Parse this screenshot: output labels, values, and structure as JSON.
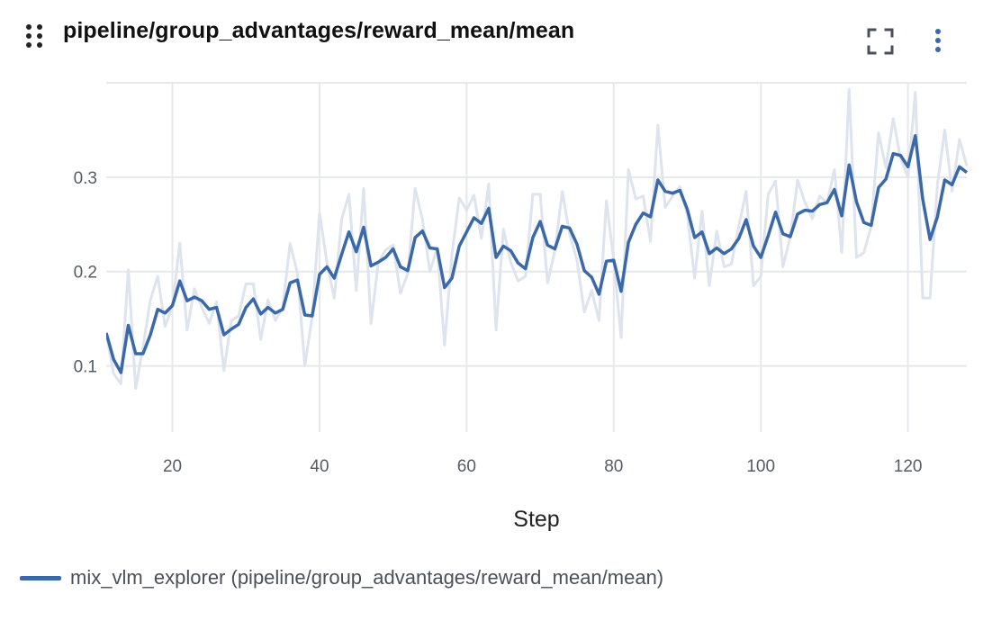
{
  "header": {
    "title": "pipeline/group_advantages/reward_mean/mean",
    "icons": {
      "drag": "drag-handle-icon",
      "fullscreen": "fullscreen-icon",
      "menu": "more-vertical-icon"
    }
  },
  "colors": {
    "line": "#3b68a8",
    "raw_line": "#dde4ee",
    "grid": "#e6e8ec"
  },
  "legend": {
    "label": "mix_vlm_explorer (pipeline/group_advantages/reward_mean/mean)"
  },
  "chart_data": {
    "type": "line",
    "xlabel": "Step",
    "ylabel": "",
    "xlim": [
      11,
      128
    ],
    "ylim": [
      0.03,
      0.4
    ],
    "grid": true,
    "legend_position": "bottom-left",
    "x_ticks": [
      20,
      40,
      60,
      80,
      100,
      120
    ],
    "x_tick_labels": [
      "20",
      "40",
      "60",
      "80",
      "100",
      "120"
    ],
    "y_ticks": [
      0.1,
      0.2,
      0.3
    ],
    "y_tick_labels": [
      "0.1",
      "0.2",
      "0.3"
    ],
    "x": [
      11,
      12,
      13,
      14,
      15,
      16,
      17,
      18,
      19,
      20,
      21,
      22,
      23,
      24,
      25,
      26,
      27,
      28,
      29,
      30,
      31,
      32,
      33,
      34,
      35,
      36,
      37,
      38,
      39,
      40,
      41,
      42,
      43,
      44,
      45,
      46,
      47,
      48,
      49,
      50,
      51,
      52,
      53,
      54,
      55,
      56,
      57,
      58,
      59,
      60,
      61,
      62,
      63,
      64,
      65,
      66,
      67,
      68,
      69,
      70,
      71,
      72,
      73,
      74,
      75,
      76,
      77,
      78,
      79,
      80,
      81,
      82,
      83,
      84,
      85,
      86,
      87,
      88,
      89,
      90,
      91,
      92,
      93,
      94,
      95,
      96,
      97,
      98,
      99,
      100,
      101,
      102,
      103,
      104,
      105,
      106,
      107,
      108,
      109,
      110,
      111,
      112,
      113,
      114,
      115,
      116,
      117,
      118,
      119,
      120,
      121,
      122,
      123,
      124,
      125,
      126,
      127,
      128
    ],
    "series": [
      {
        "name": "mix_vlm_explorer (pipeline/group_advantages/reward_mean/mean)",
        "role": "smoothed",
        "values": [
          0.135,
          0.107,
          0.093,
          0.143,
          0.113,
          0.113,
          0.133,
          0.16,
          0.156,
          0.164,
          0.19,
          0.169,
          0.173,
          0.169,
          0.16,
          0.162,
          0.133,
          0.139,
          0.144,
          0.162,
          0.171,
          0.155,
          0.162,
          0.156,
          0.16,
          0.188,
          0.191,
          0.154,
          0.153,
          0.197,
          0.205,
          0.193,
          0.218,
          0.242,
          0.221,
          0.247,
          0.206,
          0.21,
          0.215,
          0.224,
          0.205,
          0.201,
          0.236,
          0.243,
          0.225,
          0.224,
          0.183,
          0.193,
          0.227,
          0.242,
          0.257,
          0.251,
          0.267,
          0.215,
          0.227,
          0.222,
          0.209,
          0.203,
          0.236,
          0.253,
          0.228,
          0.224,
          0.248,
          0.246,
          0.229,
          0.201,
          0.194,
          0.176,
          0.211,
          0.212,
          0.179,
          0.231,
          0.25,
          0.262,
          0.258,
          0.297,
          0.285,
          0.283,
          0.286,
          0.266,
          0.236,
          0.242,
          0.219,
          0.225,
          0.219,
          0.224,
          0.235,
          0.255,
          0.227,
          0.215,
          0.238,
          0.263,
          0.24,
          0.237,
          0.261,
          0.265,
          0.264,
          0.271,
          0.273,
          0.287,
          0.259,
          0.313,
          0.274,
          0.252,
          0.249,
          0.289,
          0.298,
          0.325,
          0.323,
          0.311,
          0.344,
          0.277,
          0.234,
          0.258,
          0.297,
          0.292,
          0.311,
          0.305
        ]
      },
      {
        "name": "",
        "role": "raw",
        "values": [
          0.134,
          0.092,
          0.081,
          0.202,
          0.076,
          0.12,
          0.17,
          0.195,
          0.142,
          0.163,
          0.23,
          0.138,
          0.182,
          0.162,
          0.145,
          0.168,
          0.095,
          0.148,
          0.153,
          0.187,
          0.187,
          0.128,
          0.17,
          0.148,
          0.162,
          0.23,
          0.198,
          0.1,
          0.152,
          0.262,
          0.21,
          0.172,
          0.255,
          0.282,
          0.18,
          0.288,
          0.145,
          0.21,
          0.223,
          0.228,
          0.177,
          0.198,
          0.288,
          0.255,
          0.2,
          0.225,
          0.122,
          0.218,
          0.278,
          0.265,
          0.281,
          0.235,
          0.293,
          0.138,
          0.245,
          0.21,
          0.19,
          0.195,
          0.282,
          0.282,
          0.188,
          0.222,
          0.285,
          0.24,
          0.212,
          0.157,
          0.18,
          0.148,
          0.275,
          0.212,
          0.13,
          0.308,
          0.277,
          0.28,
          0.232,
          0.355,
          0.268,
          0.28,
          0.29,
          0.26,
          0.193,
          0.264,
          0.185,
          0.243,
          0.205,
          0.208,
          0.248,
          0.285,
          0.185,
          0.195,
          0.282,
          0.296,
          0.205,
          0.237,
          0.297,
          0.273,
          0.256,
          0.28,
          0.273,
          0.308,
          0.22,
          0.393,
          0.215,
          0.22,
          0.248,
          0.347,
          0.31,
          0.362,
          0.32,
          0.3,
          0.39,
          0.172,
          0.172,
          0.292,
          0.35,
          0.285,
          0.34,
          0.312
        ]
      }
    ]
  }
}
